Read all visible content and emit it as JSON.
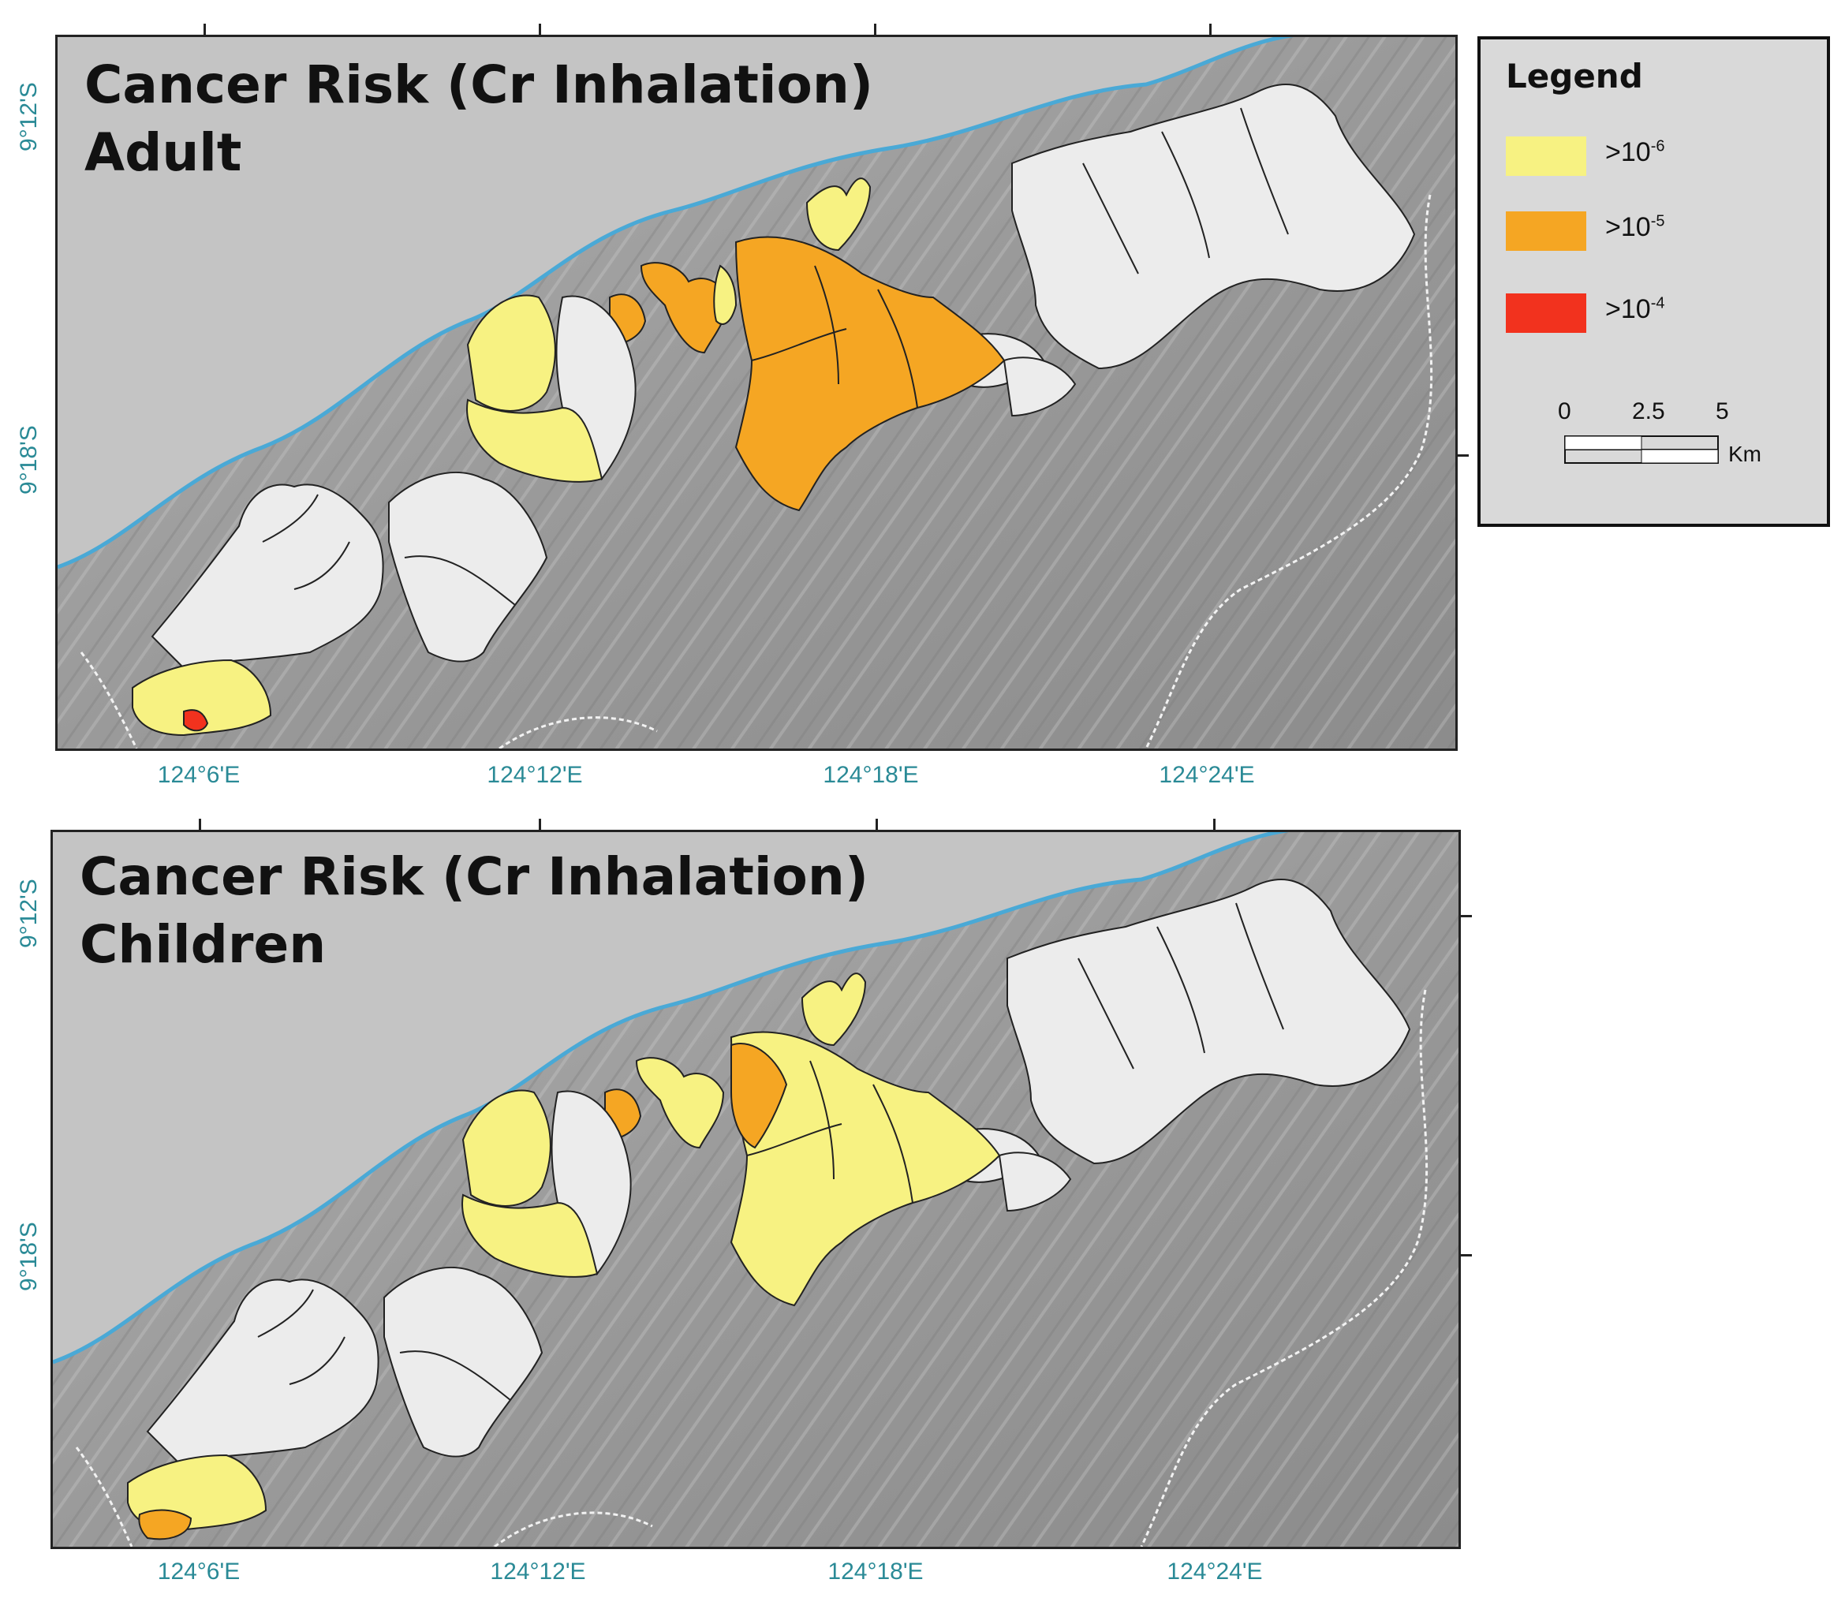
{
  "maps": [
    {
      "title_line1": "Cancer Risk (Cr Inhalation)",
      "title_line2": "Adult",
      "lat_labels": [
        "9°12'S",
        "9°18'S"
      ],
      "lon_labels": [
        "124°6'E",
        "124°12'E",
        "124°18'E",
        "124°24'E"
      ],
      "zone_risk": {
        "sw_small": "1e-4",
        "sw_south": "1e-6",
        "west_group_1": "1e-6",
        "west_group_2": "1e-6",
        "west_group_3": "1e-5",
        "central_tail": "1e-5",
        "central_main": "1e-5",
        "central_north": "1e-6",
        "central_strip": "1e-6"
      }
    },
    {
      "title_line1": "Cancer Risk (Cr Inhalation)",
      "title_line2": "Children",
      "lat_labels": [
        "9°12'S",
        "9°18'S"
      ],
      "lon_labels": [
        "124°6'E",
        "124°12'E",
        "124°18'E",
        "124°24'E"
      ],
      "zone_risk": {
        "sw_small": "1e-5",
        "sw_south": "1e-6",
        "west_group_1": "1e-6",
        "west_group_2": "1e-6",
        "west_group_3": "1e-5",
        "central_tail": "1e-6",
        "central_main": "1e-6",
        "central_north": "1e-6",
        "central_strip": "1e-5"
      }
    }
  ],
  "legend": {
    "title": "Legend",
    "items": [
      {
        "base": ">10",
        "exponent": "-6",
        "color": "#f7f282",
        "key": "1e-6"
      },
      {
        "base": ">10",
        "exponent": "-5",
        "color": "#f5a623",
        "key": "1e-5"
      },
      {
        "base": ">10",
        "exponent": "-4",
        "color": "#f2321e",
        "key": "1e-4"
      }
    ],
    "scale_bar": {
      "ticks": [
        "0",
        "2.5",
        "5"
      ],
      "unit": "Km"
    }
  },
  "colors": {
    "sea": "#c2c2c2",
    "coastline": "#4aa9d6",
    "terrain": "#9e9e9e",
    "unclassified_zone": "#ececec",
    "label_teal": "#2a8a96"
  }
}
